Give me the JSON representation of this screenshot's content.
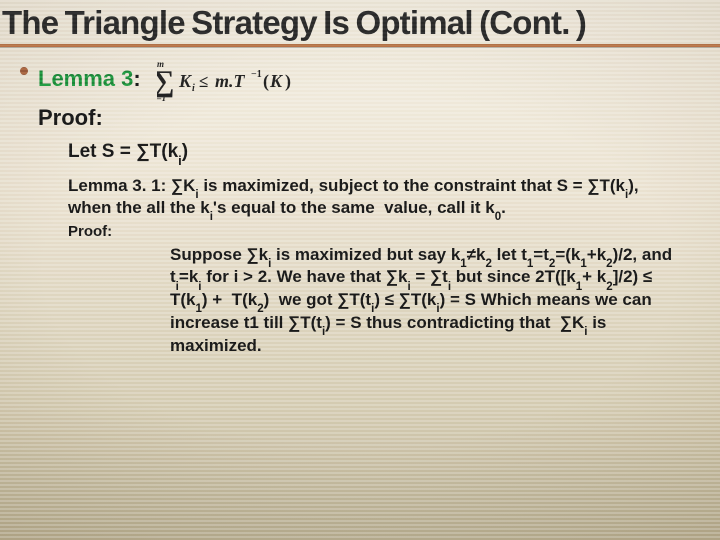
{
  "colors": {
    "accent": "#9a5a3a",
    "green": "#1f8a3b",
    "title": "#2a2a2a",
    "body": "#1a1a1a",
    "background_top": "#f6f1e6",
    "background_bottom": "#bcb398"
  },
  "typography": {
    "title_family": "Arial Black / Impact",
    "body_family": "Verdana",
    "title_size_pt": 25,
    "lemma_size_pt": 17,
    "body_size_pt": 13
  },
  "title": "The Triangle Strategy Is Optimal (Cont. )",
  "lemma": {
    "label": "Lemma 3",
    "colon": ": ",
    "formula": {
      "type": "summation",
      "lower": "i=1",
      "upper": "m",
      "body": "Kᵢ ≤ m·T⁻¹(K)"
    }
  },
  "proof_label": "Proof:",
  "let_s": "Let S = ∑T(kᵢ)",
  "lemma31": "Lemma 3. 1: ∑Kᵢ is maximized, subject to the constraint that S = ∑T(kᵢ), when the all the kᵢ's equal to the same  value, call it k₀.",
  "proof2_label": "Proof:",
  "proof_body": "Suppose ∑kᵢ is maximized but say k₁≠k₂ let t₁=t₂=(k₁+k₂)/2, and tᵢ=kᵢ for i > 2. We have that ∑kᵢ = ∑tᵢ but since 2T([k₁+ k₂]/2) ≤ T(k₁) +  T(k₂)  we got ∑T(tᵢ) ≤ ∑T(kᵢ) = S Which means we can increase t1 till ∑T(tᵢ) = S thus contradicting that  ∑Kᵢ is maximized."
}
